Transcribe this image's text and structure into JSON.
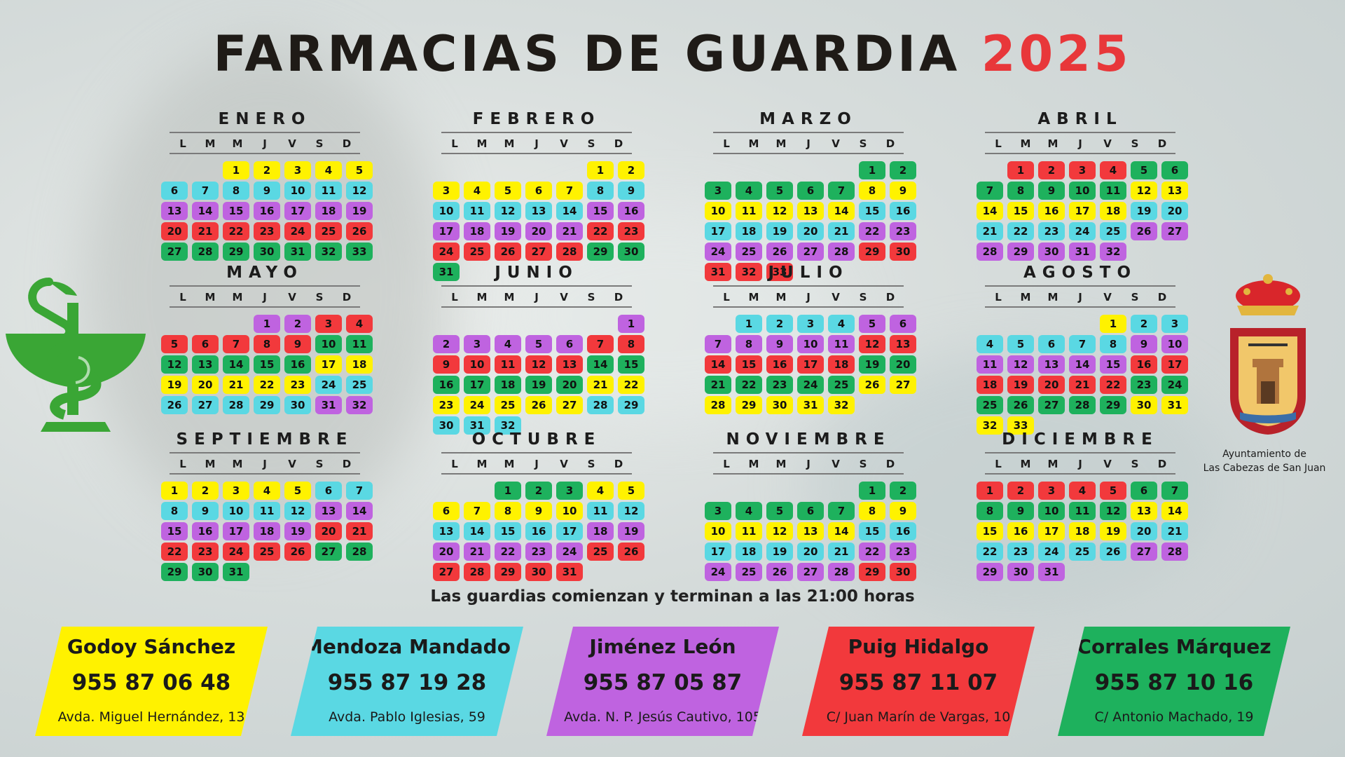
{
  "title": {
    "main": "FARMACIAS DE GUARDIA",
    "year": "2025"
  },
  "weekdays": [
    "L",
    "M",
    "M",
    "J",
    "V",
    "S",
    "D"
  ],
  "colors": {
    "Y": "#fff200",
    "C": "#5ad8e3",
    "P": "#bf63e0",
    "R": "#f2393c",
    "G": "#1eb15d"
  },
  "months": [
    {
      "name": "ENERO",
      "offset": 2,
      "days": "YYYYYCCCCCCCPPPPPPPRRRRRRRGGGGGGG"
    },
    {
      "name": "FEBRERO",
      "offset": 5,
      "days": "YYYYYYYCCCCCCCPPPPPPPRRRRRRRGGG"
    },
    {
      "name": "MARZO",
      "offset": 5,
      "days": "GGGGGGGYYYYYYYCCCCCCCPPPPPPPRRRRR"
    },
    {
      "name": "ABRIL",
      "offset": 1,
      "days": "RRRRGGGGGGGYYYYYYYCCCCCCCPPPPPPP"
    },
    {
      "name": "MAYO",
      "offset": 3,
      "days": "PPRRRRRRRGGGGGGGYYYYYYYCCCCCCCPP"
    },
    {
      "name": "JUNIO",
      "offset": 6,
      "days": "PPPPPPRRRRRRRGGGGGGGYYYYYYYCCCCC"
    },
    {
      "name": "JULIO",
      "offset": 1,
      "days": "CCCCPPPPPPPRRRRRRRGGGGGGGYYYYYYY"
    },
    {
      "name": "AGOSTO",
      "offset": 4,
      "days": "YCCCCCCCPPPPPPPRRRRRRRGGGGGGGYYYY"
    },
    {
      "name": "SEPTIEMBRE",
      "offset": 0,
      "days": "YYYYYCCCCCCCPPPPPPPRRRRRRRGGGGG"
    },
    {
      "name": "OCTUBRE",
      "offset": 2,
      "days": "GGGYYYYYYYCCCCCCCPPPPPPPRRRRRRR"
    },
    {
      "name": "NOVIEMBRE",
      "offset": 5,
      "days": "GGGGGGGYYYYYYYCCCCCCCPPPPPPPRR"
    },
    {
      "name": "DICIEMBRE",
      "offset": 0,
      "days": "RRRRRGGGGGGGYYYYYYYCCCCCCCPPPPP"
    }
  ],
  "note": "Las guardias comienzan y terminan a las 21:00 horas",
  "emblem": {
    "line1": "Ayuntamiento de",
    "line2": "Las Cabezas de San Juan"
  },
  "pharmacies": [
    {
      "name": "Godoy Sánchez",
      "phone": "955 87 06 48",
      "address": "Avda. Miguel Hernández, 13",
      "color": "#fff200"
    },
    {
      "name": "Mendoza Mandado",
      "phone": "955 87 19 28",
      "address": "Avda. Pablo Iglesias, 59",
      "color": "#5ad8e3"
    },
    {
      "name": "Jiménez León",
      "phone": "955 87 05 87",
      "address": "Avda. N. P. Jesús Cautivo, 105",
      "color": "#bf63e0"
    },
    {
      "name": "Puig Hidalgo",
      "phone": "955 87 11 07",
      "address": "C/ Juan Marín de Vargas, 10",
      "color": "#f2393c"
    },
    {
      "name": "Corrales Márquez",
      "phone": "955 87 10 16",
      "address": "C/ Antonio Machado, 19",
      "color": "#1eb15d"
    }
  ]
}
